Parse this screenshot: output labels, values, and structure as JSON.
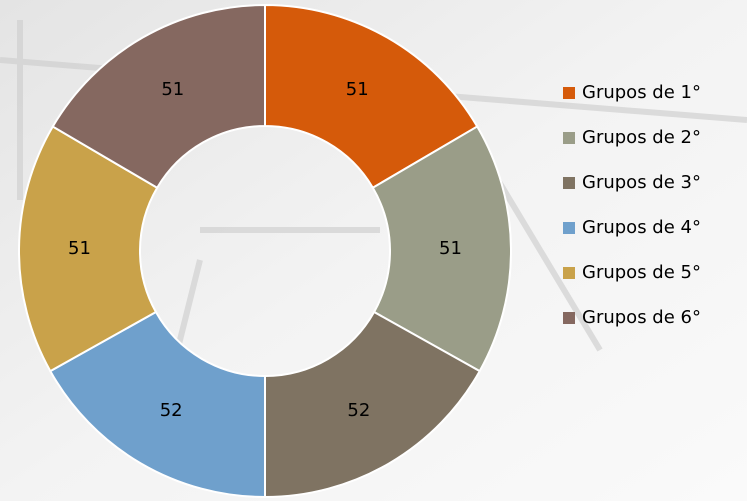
{
  "chart_data": {
    "type": "donut",
    "categories": [
      "Grupos de 1°",
      "Grupos de 2°",
      "Grupos de 3°",
      "Grupos de 4°",
      "Grupos de 5°",
      "Grupos de 6°"
    ],
    "values": [
      51,
      51,
      52,
      52,
      51,
      51
    ],
    "colors": [
      "#d55a0a",
      "#9a9d88",
      "#7f7362",
      "#6fa0cc",
      "#c9a24a",
      "#856860"
    ],
    "legend": "right"
  }
}
